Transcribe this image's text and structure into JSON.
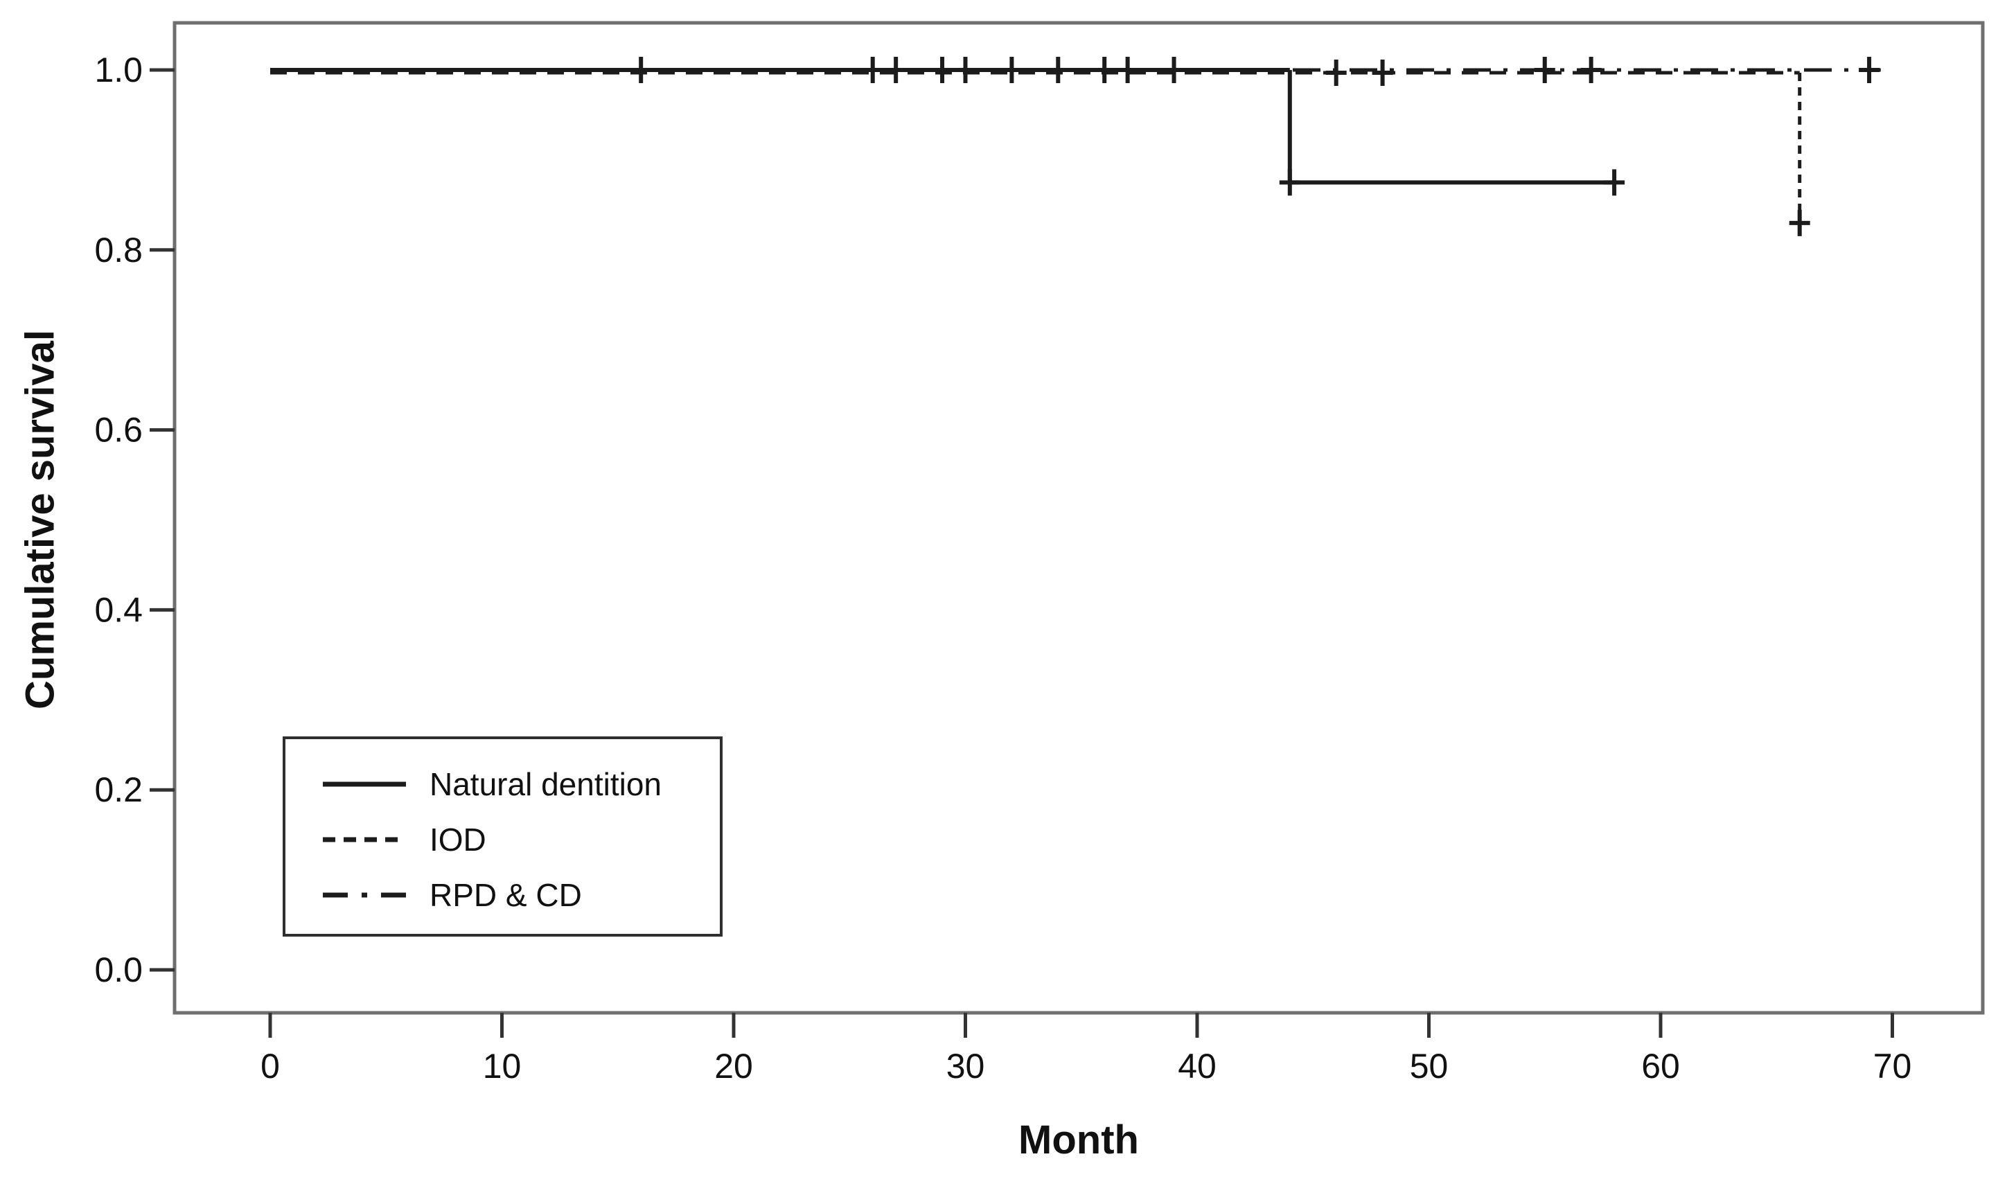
{
  "figure": {
    "background": "#ffffff",
    "line_color": "#1c1c1c",
    "frame_color": "#6f6f6f",
    "tick_color": "#333333",
    "text_color": "#111111"
  },
  "chart_data": {
    "type": "line",
    "subtype": "kaplan-meier-step",
    "title": "",
    "xlabel": "Month",
    "ylabel": "Cumulative survival",
    "xlim": [
      0,
      70
    ],
    "ylim": [
      0.0,
      1.0
    ],
    "grid": false,
    "legend_position": "lower-left",
    "x_ticks": [
      {
        "label": "0",
        "value": 0
      },
      {
        "label": "10",
        "value": 10
      },
      {
        "label": "20",
        "value": 20
      },
      {
        "label": "30",
        "value": 30
      },
      {
        "label": "40",
        "value": 40
      },
      {
        "label": "50",
        "value": 50
      },
      {
        "label": "60",
        "value": 60
      },
      {
        "label": "70",
        "value": 70
      }
    ],
    "y_ticks": [
      {
        "label": "1.0",
        "value": 1.0
      },
      {
        "label": "0.8",
        "value": 0.8
      },
      {
        "label": "0.6",
        "value": 0.6
      },
      {
        "label": "0.4",
        "value": 0.4
      },
      {
        "label": "0.2",
        "value": 0.2
      },
      {
        "label": "0.0",
        "value": 0.0
      }
    ],
    "series": [
      {
        "name": "Natural dentition",
        "dash": "solid",
        "points": [
          [
            0,
            1.0
          ],
          [
            44,
            1.0
          ],
          [
            44,
            0.875
          ],
          [
            58,
            0.875
          ]
        ],
        "censored": [
          [
            16,
            1.0
          ],
          [
            26,
            1.0
          ],
          [
            27,
            1.0
          ],
          [
            29,
            1.0
          ],
          [
            30,
            1.0
          ],
          [
            32,
            1.0
          ],
          [
            34,
            1.0
          ],
          [
            36,
            1.0
          ],
          [
            37,
            1.0
          ],
          [
            39,
            1.0
          ],
          [
            44,
            0.875
          ],
          [
            58,
            0.875
          ]
        ]
      },
      {
        "name": "IOD",
        "dash": "dashed",
        "points": [
          [
            0,
            1.0
          ],
          [
            66,
            1.0
          ],
          [
            66,
            0.833
          ]
        ],
        "censored": [
          [
            46,
            1.0
          ],
          [
            48,
            1.0
          ],
          [
            66,
            0.833
          ]
        ]
      },
      {
        "name": "RPD & CD",
        "dash": "dashdot",
        "points": [
          [
            0,
            1.0
          ],
          [
            69.5,
            1.0
          ]
        ],
        "censored": [
          [
            55,
            1.0
          ],
          [
            57,
            1.0
          ],
          [
            69,
            1.0
          ]
        ]
      }
    ]
  }
}
